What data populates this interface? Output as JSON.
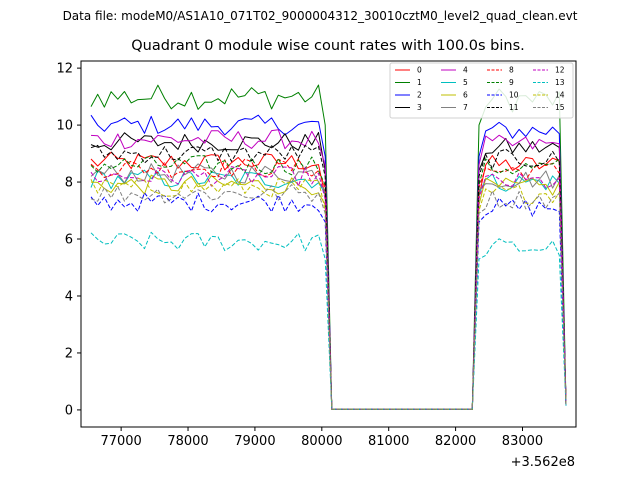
{
  "chart_data": {
    "type": "line",
    "suptitle": "Data file: modeM0/AS1A10_071T02_9000004312_30010cztM0_level2_quad_clean.evt",
    "title": "Quadrant 0 module wise count rates with 100.0s bins.",
    "xlabel": "",
    "ylabel": "",
    "x_offset_text": "+3.562e8",
    "xlim": [
      76400,
      83800
    ],
    "ylim": [
      -0.6,
      12.25
    ],
    "x_ticks": [
      77000,
      78000,
      79000,
      80000,
      81000,
      82000,
      83000
    ],
    "x_tick_labels": [
      "77000",
      "78000",
      "79000",
      "80000",
      "81000",
      "82000",
      "83000"
    ],
    "y_ticks": [
      0,
      2,
      4,
      6,
      8,
      10,
      12
    ],
    "y_tick_labels": [
      "0",
      "2",
      "4",
      "6",
      "8",
      "10",
      "12"
    ],
    "legend_position": "top-right",
    "time_segments": [
      {
        "start": 76550,
        "end": 80050,
        "step": 100
      },
      {
        "start": 80150,
        "end": 82250,
        "step": 100
      },
      {
        "start": 82350,
        "end": 83550,
        "step": 100
      },
      {
        "start": 83650,
        "end": 83650,
        "step": 100
      }
    ],
    "series": [
      {
        "name": "0",
        "color": "#ff0000",
        "dash": "solid",
        "plateau_early": 8.7,
        "plateau_late": 8.6,
        "drop_value": 7.5,
        "end_value": 0.3
      },
      {
        "name": "1",
        "color": "#008000",
        "dash": "solid",
        "plateau_early": 11.0,
        "plateau_late": 10.9,
        "drop_value": 10.0,
        "end_value": 0.25
      },
      {
        "name": "2",
        "color": "#0000ff",
        "dash": "solid",
        "plateau_early": 10.0,
        "plateau_late": 9.8,
        "drop_value": 8.9,
        "end_value": 0.2
      },
      {
        "name": "3",
        "color": "#000000",
        "dash": "solid",
        "plateau_early": 9.4,
        "plateau_late": 9.2,
        "drop_value": 8.4,
        "end_value": 0.2
      },
      {
        "name": "4",
        "color": "#c000c0",
        "dash": "solid",
        "plateau_early": 9.5,
        "plateau_late": 9.3,
        "drop_value": 8.6,
        "end_value": 0.2
      },
      {
        "name": "5",
        "color": "#00bfbf",
        "dash": "solid",
        "plateau_early": 8.1,
        "plateau_late": 8.0,
        "drop_value": 7.6,
        "end_value": 0.2
      },
      {
        "name": "6",
        "color": "#bfbf00",
        "dash": "solid",
        "plateau_early": 7.9,
        "plateau_late": 7.8,
        "drop_value": 7.2,
        "end_value": 0.2
      },
      {
        "name": "7",
        "color": "#808080",
        "dash": "solid",
        "plateau_early": 8.3,
        "plateau_late": 8.1,
        "drop_value": 7.7,
        "end_value": 0.2
      },
      {
        "name": "8",
        "color": "#ff0000",
        "dash": "dashed",
        "plateau_early": 8.5,
        "plateau_late": 8.4,
        "drop_value": 7.8,
        "end_value": 0.2
      },
      {
        "name": "9",
        "color": "#008000",
        "dash": "dashed",
        "plateau_early": 8.6,
        "plateau_late": 8.5,
        "drop_value": 7.9,
        "end_value": 0.2
      },
      {
        "name": "10",
        "color": "#0000ff",
        "dash": "dashed",
        "plateau_early": 7.3,
        "plateau_late": 7.1,
        "drop_value": 6.6,
        "end_value": 0.15
      },
      {
        "name": "11",
        "color": "#000000",
        "dash": "dashed",
        "plateau_early": 9.0,
        "plateau_late": 8.8,
        "drop_value": 8.2,
        "end_value": 0.2
      },
      {
        "name": "12",
        "color": "#c000c0",
        "dash": "dashed",
        "plateau_early": 8.2,
        "plateau_late": 8.0,
        "drop_value": 7.4,
        "end_value": 0.2
      },
      {
        "name": "13",
        "color": "#00bfbf",
        "dash": "dashed",
        "plateau_early": 5.9,
        "plateau_late": 5.7,
        "drop_value": 5.3,
        "end_value": 0.15
      },
      {
        "name": "14",
        "color": "#bfbf00",
        "dash": "dashed",
        "plateau_early": 7.8,
        "plateau_late": 7.6,
        "drop_value": 7.0,
        "end_value": 0.2
      },
      {
        "name": "15",
        "color": "#808080",
        "dash": "dashed",
        "plateau_early": 7.6,
        "plateau_late": 7.4,
        "drop_value": 6.9,
        "end_value": 0.2
      }
    ]
  }
}
